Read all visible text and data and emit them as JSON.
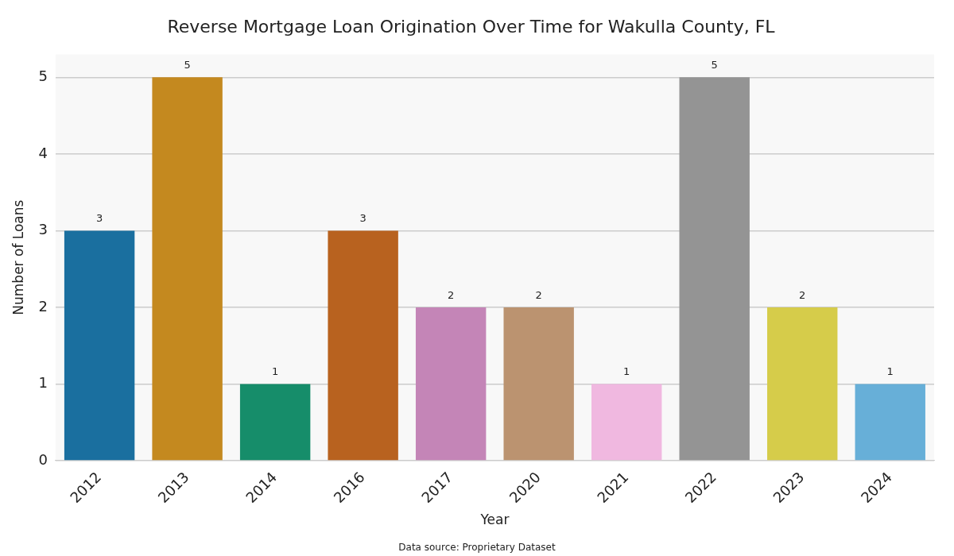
{
  "chart_data": {
    "type": "bar",
    "title": "Reverse Mortgage Loan Origination Over Time for Wakulla County, FL",
    "xlabel": "Year",
    "ylabel": "Number of Loans",
    "categories": [
      "2012",
      "2013",
      "2014",
      "2016",
      "2017",
      "2020",
      "2021",
      "2022",
      "2023",
      "2024"
    ],
    "values": [
      3,
      5,
      1,
      3,
      2,
      2,
      1,
      5,
      2,
      1
    ],
    "colors": [
      "#1a6f9f",
      "#c4891f",
      "#168d6a",
      "#b8621f",
      "#c485b7",
      "#bb9370",
      "#f0b8e0",
      "#949494",
      "#d6cc4a",
      "#67afd8"
    ],
    "ylim": [
      0,
      5.3
    ],
    "yticks": [
      0,
      1,
      2,
      3,
      4,
      5
    ],
    "grid": "y",
    "legend": false,
    "data_labels": true,
    "annotations": [
      "Data source: Proprietary Dataset"
    ]
  }
}
